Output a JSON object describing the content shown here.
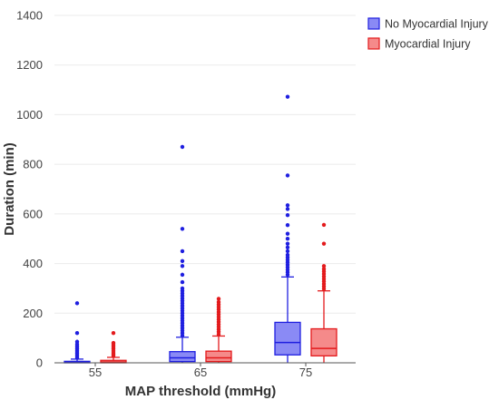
{
  "chart_data": {
    "type": "boxplot",
    "xlabel": "MAP threshold (mmHg)",
    "ylabel": "Duration (min)",
    "ylim": [
      0,
      1400
    ],
    "yticks": [
      0,
      200,
      400,
      600,
      800,
      1000,
      1200,
      1400
    ],
    "categories": [
      "55",
      "65",
      "75"
    ],
    "grid": "horizontal",
    "legend_position": "top-right",
    "series": [
      {
        "name": "No Myocardial Injury",
        "color": "#1f1fe0",
        "fill": "#8a8af5",
        "boxes": [
          {
            "category": "55",
            "q1": 0,
            "median": 2,
            "q3": 6,
            "whisker_low": 0,
            "whisker_high": 15,
            "outliers": [
              20,
              26,
              32,
              38,
              44,
              50,
              56,
              62,
              68,
              75,
              85,
              120,
              240
            ]
          },
          {
            "category": "65",
            "q1": 5,
            "median": 20,
            "q3": 45,
            "whisker_low": 0,
            "whisker_high": 103,
            "outliers": [
              110,
              120,
              130,
              140,
              150,
              160,
              170,
              180,
              190,
              200,
              210,
              220,
              230,
              240,
              250,
              260,
              270,
              280,
              290,
              300,
              325,
              355,
              390,
              410,
              450,
              540,
              870
            ]
          },
          {
            "category": "75",
            "q1": 32,
            "median": 82,
            "q3": 163,
            "whisker_low": 0,
            "whisker_high": 346,
            "outliers": [
              355,
              365,
              375,
              385,
              395,
              405,
              415,
              425,
              435,
              450,
              465,
              480,
              500,
              520,
              555,
              595,
              620,
              635,
              755,
              1072
            ]
          }
        ]
      },
      {
        "name": "Myocardial Injury",
        "color": "#e31a1c",
        "fill": "#f58a8a",
        "boxes": [
          {
            "category": "55",
            "q1": 0,
            "median": 3,
            "q3": 10,
            "whisker_low": 0,
            "whisker_high": 22,
            "outliers": [
              28,
              34,
              40,
              48,
              56,
              64,
              72,
              80,
              120
            ]
          },
          {
            "category": "65",
            "q1": 5,
            "median": 20,
            "q3": 47,
            "whisker_low": 0,
            "whisker_high": 108,
            "outliers": [
              115,
              125,
              135,
              145,
              155,
              165,
              175,
              185,
              195,
              205,
              215,
              225,
              235,
              245,
              258
            ]
          },
          {
            "category": "75",
            "q1": 28,
            "median": 58,
            "q3": 137,
            "whisker_low": 0,
            "whisker_high": 290,
            "outliers": [
              298,
              308,
              318,
              328,
              338,
              348,
              358,
              368,
              378,
              390,
              480,
              556
            ]
          }
        ]
      }
    ]
  }
}
